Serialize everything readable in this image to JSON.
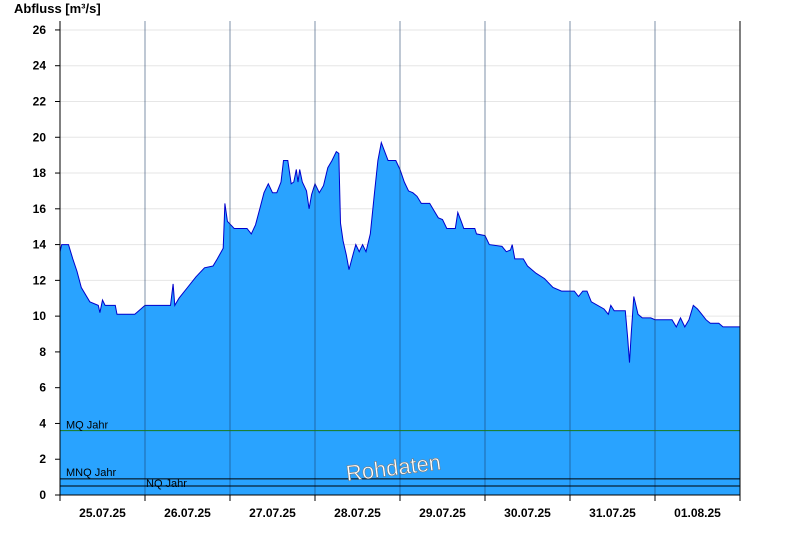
{
  "chart_data": {
    "type": "area",
    "ylabel": "Abfluss [m³/s]",
    "ylim": [
      0,
      26.5
    ],
    "yticks": [
      0,
      2,
      4,
      6,
      8,
      10,
      12,
      14,
      16,
      18,
      20,
      22,
      24,
      26
    ],
    "xlim": [
      0,
      8
    ],
    "x_ticks": [
      {
        "x": 0.5,
        "label": "25.07.25"
      },
      {
        "x": 1.5,
        "label": "26.07.25"
      },
      {
        "x": 2.5,
        "label": "27.07.25"
      },
      {
        "x": 3.5,
        "label": "28.07.25"
      },
      {
        "x": 4.5,
        "label": "29.07.25"
      },
      {
        "x": 5.5,
        "label": "30.07.25"
      },
      {
        "x": 6.5,
        "label": "31.07.25"
      },
      {
        "x": 7.5,
        "label": "01.08.25"
      }
    ],
    "grid": true,
    "series": [
      {
        "name": "",
        "color": "#29a3ff",
        "line_color": "#0000cc",
        "points": [
          [
            0.0,
            13.6
          ],
          [
            0.02,
            14.0
          ],
          [
            0.1,
            14.0
          ],
          [
            0.15,
            13.2
          ],
          [
            0.2,
            12.5
          ],
          [
            0.25,
            11.6
          ],
          [
            0.35,
            10.8
          ],
          [
            0.45,
            10.6
          ],
          [
            0.47,
            10.2
          ],
          [
            0.5,
            10.9
          ],
          [
            0.53,
            10.6
          ],
          [
            0.65,
            10.6
          ],
          [
            0.67,
            10.1
          ],
          [
            0.88,
            10.1
          ],
          [
            1.0,
            10.6
          ],
          [
            1.1,
            10.6
          ],
          [
            1.3,
            10.6
          ],
          [
            1.33,
            11.8
          ],
          [
            1.35,
            10.6
          ],
          [
            1.4,
            11.0
          ],
          [
            1.5,
            11.6
          ],
          [
            1.6,
            12.2
          ],
          [
            1.7,
            12.7
          ],
          [
            1.8,
            12.8
          ],
          [
            1.85,
            13.2
          ],
          [
            1.92,
            13.8
          ],
          [
            1.94,
            16.3
          ],
          [
            1.97,
            15.3
          ],
          [
            2.05,
            14.9
          ],
          [
            2.2,
            14.9
          ],
          [
            2.25,
            14.6
          ],
          [
            2.3,
            15.1
          ],
          [
            2.35,
            16.0
          ],
          [
            2.4,
            16.9
          ],
          [
            2.45,
            17.4
          ],
          [
            2.5,
            16.9
          ],
          [
            2.55,
            16.9
          ],
          [
            2.6,
            17.5
          ],
          [
            2.63,
            18.7
          ],
          [
            2.68,
            18.7
          ],
          [
            2.72,
            17.4
          ],
          [
            2.75,
            17.5
          ],
          [
            2.78,
            18.2
          ],
          [
            2.8,
            17.5
          ],
          [
            2.82,
            18.2
          ],
          [
            2.85,
            17.5
          ],
          [
            2.9,
            17.0
          ],
          [
            2.93,
            16.0
          ],
          [
            2.96,
            16.8
          ],
          [
            3.0,
            17.4
          ],
          [
            3.05,
            16.9
          ],
          [
            3.1,
            17.3
          ],
          [
            3.15,
            18.3
          ],
          [
            3.2,
            18.7
          ],
          [
            3.25,
            19.2
          ],
          [
            3.28,
            19.1
          ],
          [
            3.3,
            15.2
          ],
          [
            3.33,
            14.2
          ],
          [
            3.37,
            13.4
          ],
          [
            3.4,
            12.6
          ],
          [
            3.45,
            13.5
          ],
          [
            3.48,
            14.0
          ],
          [
            3.52,
            13.6
          ],
          [
            3.56,
            14.0
          ],
          [
            3.6,
            13.6
          ],
          [
            3.65,
            14.6
          ],
          [
            3.7,
            16.9
          ],
          [
            3.74,
            18.7
          ],
          [
            3.78,
            19.7
          ],
          [
            3.82,
            19.2
          ],
          [
            3.86,
            18.7
          ],
          [
            3.95,
            18.7
          ],
          [
            4.0,
            18.2
          ],
          [
            4.05,
            17.5
          ],
          [
            4.1,
            17.0
          ],
          [
            4.15,
            16.9
          ],
          [
            4.2,
            16.7
          ],
          [
            4.25,
            16.3
          ],
          [
            4.35,
            16.3
          ],
          [
            4.4,
            15.9
          ],
          [
            4.45,
            15.5
          ],
          [
            4.5,
            15.4
          ],
          [
            4.55,
            14.9
          ],
          [
            4.65,
            14.9
          ],
          [
            4.68,
            15.8
          ],
          [
            4.72,
            15.3
          ],
          [
            4.75,
            14.9
          ],
          [
            4.88,
            14.9
          ],
          [
            4.9,
            14.6
          ],
          [
            5.0,
            14.5
          ],
          [
            5.05,
            14.0
          ],
          [
            5.2,
            13.9
          ],
          [
            5.25,
            13.6
          ],
          [
            5.3,
            13.7
          ],
          [
            5.32,
            14.0
          ],
          [
            5.35,
            13.2
          ],
          [
            5.45,
            13.2
          ],
          [
            5.5,
            12.8
          ],
          [
            5.6,
            12.4
          ],
          [
            5.7,
            12.1
          ],
          [
            5.8,
            11.6
          ],
          [
            5.9,
            11.4
          ],
          [
            6.05,
            11.4
          ],
          [
            6.1,
            11.1
          ],
          [
            6.15,
            11.4
          ],
          [
            6.2,
            11.4
          ],
          [
            6.25,
            10.8
          ],
          [
            6.4,
            10.4
          ],
          [
            6.45,
            10.1
          ],
          [
            6.48,
            10.6
          ],
          [
            6.52,
            10.3
          ],
          [
            6.65,
            10.3
          ],
          [
            6.68,
            8.7
          ],
          [
            6.7,
            7.4
          ],
          [
            6.72,
            9.0
          ],
          [
            6.75,
            11.1
          ],
          [
            6.8,
            10.1
          ],
          [
            6.85,
            9.9
          ],
          [
            6.95,
            9.9
          ],
          [
            7.0,
            9.8
          ],
          [
            7.2,
            9.8
          ],
          [
            7.25,
            9.4
          ],
          [
            7.3,
            9.9
          ],
          [
            7.35,
            9.4
          ],
          [
            7.4,
            9.8
          ],
          [
            7.45,
            10.6
          ],
          [
            7.5,
            10.4
          ],
          [
            7.55,
            10.1
          ],
          [
            7.6,
            9.8
          ],
          [
            7.65,
            9.6
          ],
          [
            7.75,
            9.6
          ],
          [
            7.8,
            9.4
          ],
          [
            8.0,
            9.4
          ]
        ]
      }
    ],
    "reference_lines": [
      {
        "label": "MQ Jahr",
        "value": 3.6,
        "color": "#1a7a1a"
      },
      {
        "label": "MNQ Jahr",
        "value": 0.9,
        "color": "#000000"
      },
      {
        "label": "NQ Jahr",
        "value": 0.5,
        "color": "#000000"
      }
    ],
    "watermark": "Rohdaten"
  }
}
